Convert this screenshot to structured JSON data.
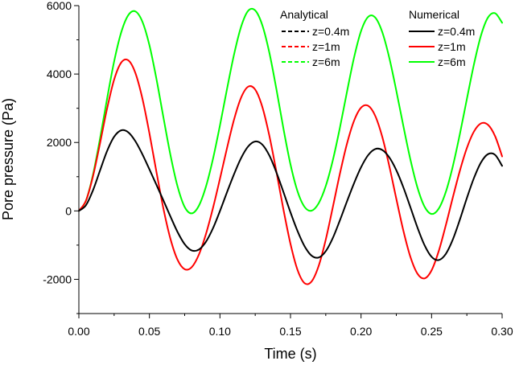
{
  "chart_data": {
    "type": "line",
    "title": "",
    "xlabel": "Time (s)",
    "ylabel": "Pore pressure (Pa)",
    "xlim": [
      0,
      0.3
    ],
    "ylim": [
      -3000,
      6000
    ],
    "xticks": [
      "0.00",
      "0.05",
      "0.10",
      "0.15",
      "0.20",
      "0.25",
      "0.30"
    ],
    "yticks": [
      "-2000",
      "0",
      "2000",
      "4000",
      "6000"
    ],
    "grid": false,
    "legend": [
      {
        "title": "Analytical",
        "entries": [
          {
            "label": "z=0.4m",
            "color": "#000000",
            "style": "dashed"
          },
          {
            "label": "z=1m",
            "color": "#ff0000",
            "style": "dashed"
          },
          {
            "label": "z=6m",
            "color": "#00ff00",
            "style": "dashed"
          }
        ]
      },
      {
        "title": "Numerical",
        "entries": [
          {
            "label": "z=0.4m",
            "color": "#000000",
            "style": "solid"
          },
          {
            "label": "z=1m",
            "color": "#ff0000",
            "style": "solid"
          },
          {
            "label": "z=6m",
            "color": "#00ff00",
            "style": "solid"
          }
        ]
      }
    ],
    "x": [
      0.0,
      0.005,
      0.01,
      0.015,
      0.02,
      0.025,
      0.03,
      0.035,
      0.04,
      0.045,
      0.05,
      0.055,
      0.06,
      0.065,
      0.07,
      0.075,
      0.08,
      0.085,
      0.09,
      0.095,
      0.1,
      0.105,
      0.11,
      0.115,
      0.12,
      0.125,
      0.13,
      0.135,
      0.14,
      0.145,
      0.15,
      0.155,
      0.16,
      0.165,
      0.17,
      0.175,
      0.18,
      0.185,
      0.19,
      0.195,
      0.2,
      0.205,
      0.21,
      0.215,
      0.22,
      0.225,
      0.23,
      0.235,
      0.24,
      0.245,
      0.25,
      0.255,
      0.26,
      0.265,
      0.27,
      0.275,
      0.28,
      0.285,
      0.29,
      0.295,
      0.3
    ],
    "series": [
      {
        "name": "z=0.4m",
        "color": "#000000",
        "values": [
          0,
          166,
          602,
          1182,
          1749,
          2167,
          2355,
          2298,
          2041,
          1658,
          1217,
          761,
          301,
          -172,
          -621,
          -973,
          -1156,
          -1132,
          -906,
          -512,
          -3,
          546,
          1075,
          1546,
          1885,
          2030,
          1940,
          1621,
          1128,
          552,
          -43,
          -589,
          -1034,
          -1310,
          -1362,
          -1177,
          -791,
          -277,
          274,
          805,
          1275,
          1628,
          1808,
          1782,
          1565,
          1189,
          688,
          106,
          -487,
          -1002,
          -1343,
          -1438,
          -1262,
          -842,
          -262,
          374,
          958,
          1416,
          1660,
          1638,
          1316
        ]
      },
      {
        "name": "z=1m",
        "color": "#ff0000",
        "values": [
          0,
          296,
          1009,
          1975,
          2990,
          3838,
          4335,
          4403,
          4038,
          3290,
          2271,
          1136,
          54,
          -831,
          -1434,
          -1705,
          -1644,
          -1285,
          -686,
          76,
          939,
          1835,
          2672,
          3313,
          3631,
          3545,
          3044,
          2200,
          1148,
          42,
          -965,
          -1727,
          -2113,
          -2060,
          -1604,
          -838,
          109,
          1084,
          1958,
          2629,
          3017,
          3074,
          2784,
          2171,
          1317,
          354,
          -577,
          -1346,
          -1836,
          -1973,
          -1737,
          -1184,
          -432,
          384,
          1167,
          1836,
          2318,
          2558,
          2516,
          2186,
          1594
        ]
      },
      {
        "name": "z=6m",
        "color": "#00ff00",
        "values": [
          0,
          295,
          1057,
          2113,
          3279,
          4369,
          5217,
          5720,
          5833,
          5534,
          4845,
          3855,
          2719,
          1617,
          709,
          114,
          -72,
          146,
          699,
          1510,
          2498,
          3562,
          4574,
          5385,
          5849,
          5859,
          5432,
          4628,
          3562,
          2406,
          1359,
          571,
          115,
          8,
          226,
          728,
          1479,
          2426,
          3473,
          4474,
          5256,
          5670,
          5655,
          5231,
          4478,
          3513,
          2481,
          1500,
          682,
          126,
          -89,
          62,
          543,
          1295,
          2236,
          3268,
          4278,
          5126,
          5655,
          5779,
          5500
        ]
      }
    ]
  }
}
